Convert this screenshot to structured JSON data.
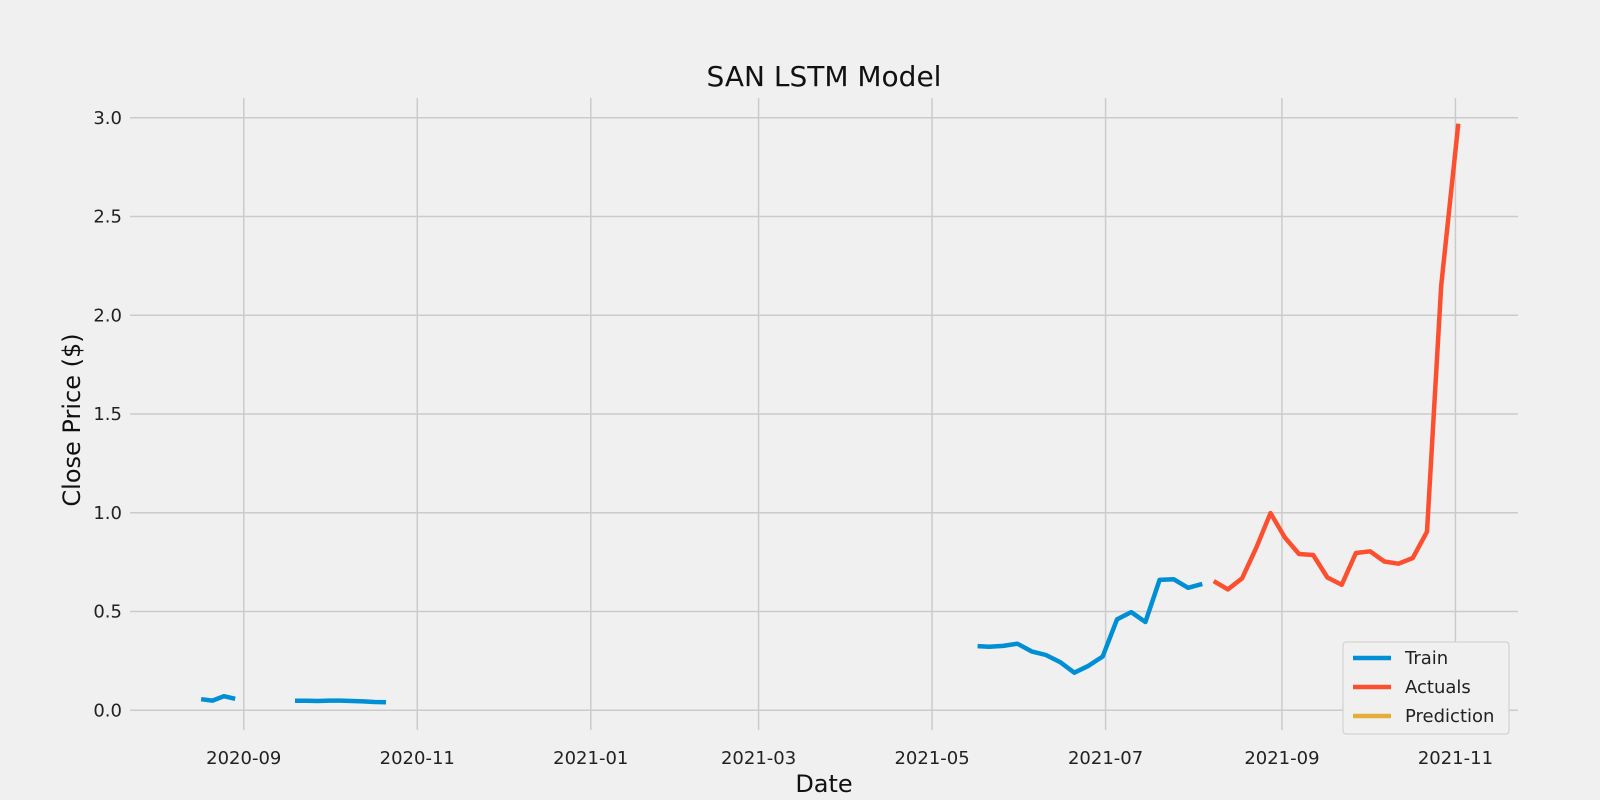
{
  "chart_data": {
    "type": "line",
    "title": "SAN LSTM Model",
    "xlabel": "Date",
    "ylabel": "Close Price ($)",
    "xlim": [
      "2020-07-23",
      "2021-11-23"
    ],
    "ylim": [
      -0.1,
      3.1
    ],
    "x_ticks": [
      "2020-09-01",
      "2020-11-01",
      "2021-01-01",
      "2021-03-01",
      "2021-05-01",
      "2021-07-01",
      "2021-09-01",
      "2021-11-01"
    ],
    "x_tick_labels": [
      "2020-09",
      "2020-11",
      "2021-01",
      "2021-03",
      "2021-05",
      "2021-07",
      "2021-09",
      "2021-11"
    ],
    "y_ticks": [
      0.0,
      0.5,
      1.0,
      1.5,
      2.0,
      2.5,
      3.0
    ],
    "y_tick_labels": [
      "0.0",
      "0.5",
      "1.0",
      "1.5",
      "2.0",
      "2.5",
      "3.0"
    ],
    "grid": true,
    "legend_position": "bottom-right",
    "series": [
      {
        "name": "Train",
        "color": "#008fd5",
        "segments": [
          [
            {
              "x": "2020-08-17",
              "y": 0.056
            },
            {
              "x": "2020-08-21",
              "y": 0.049
            },
            {
              "x": "2020-08-25",
              "y": 0.071
            },
            {
              "x": "2020-08-29",
              "y": 0.058
            }
          ],
          [
            {
              "x": "2020-09-19",
              "y": 0.048
            },
            {
              "x": "2020-09-23",
              "y": 0.048
            },
            {
              "x": "2020-09-27",
              "y": 0.047
            },
            {
              "x": "2020-10-01",
              "y": 0.049
            },
            {
              "x": "2020-10-05",
              "y": 0.049
            },
            {
              "x": "2020-10-09",
              "y": 0.047
            },
            {
              "x": "2020-10-13",
              "y": 0.045
            },
            {
              "x": "2020-10-17",
              "y": 0.042
            },
            {
              "x": "2020-10-21",
              "y": 0.041
            }
          ],
          [
            {
              "x": "2021-05-17",
              "y": 0.325
            },
            {
              "x": "2021-05-21",
              "y": 0.322
            },
            {
              "x": "2021-05-26",
              "y": 0.326
            },
            {
              "x": "2021-05-31",
              "y": 0.337
            },
            {
              "x": "2021-06-05",
              "y": 0.298
            },
            {
              "x": "2021-06-10",
              "y": 0.28
            },
            {
              "x": "2021-06-15",
              "y": 0.244
            },
            {
              "x": "2021-06-20",
              "y": 0.19
            },
            {
              "x": "2021-06-25",
              "y": 0.225
            },
            {
              "x": "2021-06-30",
              "y": 0.272
            },
            {
              "x": "2021-07-05",
              "y": 0.46
            },
            {
              "x": "2021-07-10",
              "y": 0.497
            },
            {
              "x": "2021-07-15",
              "y": 0.447
            },
            {
              "x": "2021-07-20",
              "y": 0.66
            },
            {
              "x": "2021-07-25",
              "y": 0.663
            },
            {
              "x": "2021-07-30",
              "y": 0.62
            },
            {
              "x": "2021-08-04",
              "y": 0.64
            }
          ]
        ]
      },
      {
        "name": "Actuals",
        "color": "#fc4f30",
        "segments": [
          [
            {
              "x": "2021-08-08",
              "y": 0.654
            },
            {
              "x": "2021-08-13",
              "y": 0.612
            },
            {
              "x": "2021-08-18",
              "y": 0.668
            },
            {
              "x": "2021-08-23",
              "y": 0.823
            },
            {
              "x": "2021-08-28",
              "y": 0.998
            },
            {
              "x": "2021-09-02",
              "y": 0.875
            },
            {
              "x": "2021-09-07",
              "y": 0.791
            },
            {
              "x": "2021-09-12",
              "y": 0.786
            },
            {
              "x": "2021-09-17",
              "y": 0.672
            },
            {
              "x": "2021-09-22",
              "y": 0.635
            },
            {
              "x": "2021-09-27",
              "y": 0.796
            },
            {
              "x": "2021-10-02",
              "y": 0.805
            },
            {
              "x": "2021-10-07",
              "y": 0.753
            },
            {
              "x": "2021-10-12",
              "y": 0.742
            },
            {
              "x": "2021-10-17",
              "y": 0.771
            },
            {
              "x": "2021-10-22",
              "y": 0.904
            },
            {
              "x": "2021-10-27",
              "y": 2.15
            },
            {
              "x": "2021-11-02",
              "y": 2.97
            }
          ]
        ]
      },
      {
        "name": "Prediction",
        "color": "#e5ae38",
        "segments": []
      }
    ]
  }
}
